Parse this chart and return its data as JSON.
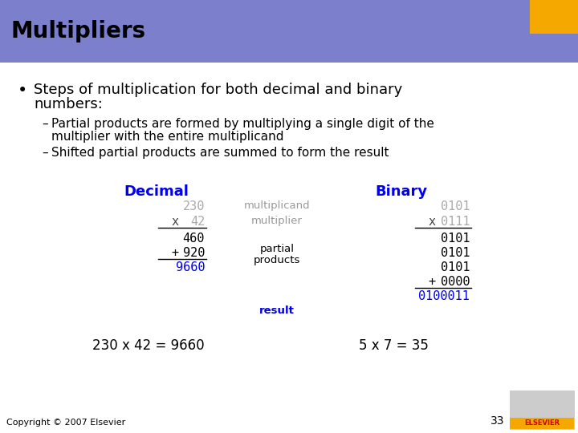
{
  "title": "Multipliers",
  "title_bg_color": "#7b7fcc",
  "title_text_color": "#000000",
  "slide_bg_color": "#ffffff",
  "orange_rect_color": "#f5a800",
  "bullet_text_line1": "Steps of multiplication for both decimal and binary",
  "bullet_text_line2": "numbers:",
  "sub1_line1": "Partial products are formed by multiplying a single digit of the",
  "sub1_line2": "multiplier with the entire multiplicand",
  "sub2": "Shifted partial products are summed to form the result",
  "decimal_label": "Decimal",
  "binary_label": "Binary",
  "blue_color": "#0000ee",
  "label_gray": "#999999",
  "copyright": "Copyright © 2007 Elsevier",
  "page_number": "33",
  "bottom_eq_decimal": "230 x 42 = 9660",
  "bottom_eq_binary": "5 x 7 = 35"
}
